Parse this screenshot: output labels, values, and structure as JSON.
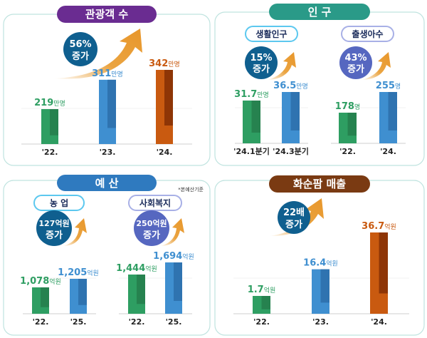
{
  "colors": {
    "green": "#2e9e62",
    "blue": "#3f8fd0",
    "orange": "#c95a10",
    "purple": "#6a2c91",
    "teal": "#2a9a88",
    "budget_blue": "#2f7abf",
    "brown": "#7a3a12",
    "badge_dark": "#0f5f8f",
    "badge_purple": "#5667c0",
    "arrow": "#e89a2c"
  },
  "panels": {
    "tourists": {
      "title": "관광객 수",
      "badge": [
        "56%",
        "증가"
      ]
    },
    "population": {
      "title": "인 구",
      "sub1": "생활인구",
      "sub2": "출생아수",
      "badge1": [
        "15%",
        "증가"
      ],
      "badge2": [
        "43%",
        "증가"
      ]
    },
    "budget": {
      "title": "예 산",
      "note": "*본예산기준",
      "sub1": "농 업",
      "sub2": "사회복지",
      "badge1": [
        "127억원",
        "증가"
      ],
      "badge2": [
        "250억원",
        "증가"
      ]
    },
    "farm": {
      "title": "화순팜 매출",
      "badge": [
        "22배",
        "증가"
      ]
    }
  },
  "chart_data": [
    {
      "type": "bar",
      "title": "관광객 수",
      "categories": [
        "'22.",
        "'23.",
        "'24."
      ],
      "values": [
        219,
        311,
        342
      ],
      "value_labels": [
        "219",
        "311",
        "342"
      ],
      "unit": "만명",
      "colors": [
        "green",
        "blue",
        "orange"
      ]
    },
    {
      "type": "bar",
      "title": "생활인구",
      "categories": [
        "'24.1분기",
        "'24.3분기"
      ],
      "values": [
        31.7,
        36.5
      ],
      "value_labels": [
        "31.7",
        "36.5"
      ],
      "unit": "만명",
      "colors": [
        "green",
        "blue"
      ]
    },
    {
      "type": "bar",
      "title": "출생아수",
      "categories": [
        "'22.",
        "'24."
      ],
      "values": [
        178,
        255
      ],
      "value_labels": [
        "178",
        "255"
      ],
      "unit": "명",
      "colors": [
        "green",
        "blue"
      ]
    },
    {
      "type": "bar",
      "title": "농 업",
      "categories": [
        "'22.",
        "'25."
      ],
      "values": [
        1078,
        1205
      ],
      "value_labels": [
        "1,078",
        "1,205"
      ],
      "unit": "억원",
      "colors": [
        "green",
        "blue"
      ]
    },
    {
      "type": "bar",
      "title": "사회복지",
      "categories": [
        "'22.",
        "'25."
      ],
      "values": [
        1444,
        1694
      ],
      "value_labels": [
        "1,444",
        "1,694"
      ],
      "unit": "억원",
      "colors": [
        "green",
        "blue"
      ]
    },
    {
      "type": "bar",
      "title": "화순팜 매출",
      "categories": [
        "'22.",
        "'23.",
        "'24."
      ],
      "values": [
        1.7,
        16.4,
        36.7
      ],
      "value_labels": [
        "1.7",
        "16.4",
        "36.7"
      ],
      "unit": "억원",
      "colors": [
        "green",
        "blue",
        "orange"
      ]
    }
  ]
}
